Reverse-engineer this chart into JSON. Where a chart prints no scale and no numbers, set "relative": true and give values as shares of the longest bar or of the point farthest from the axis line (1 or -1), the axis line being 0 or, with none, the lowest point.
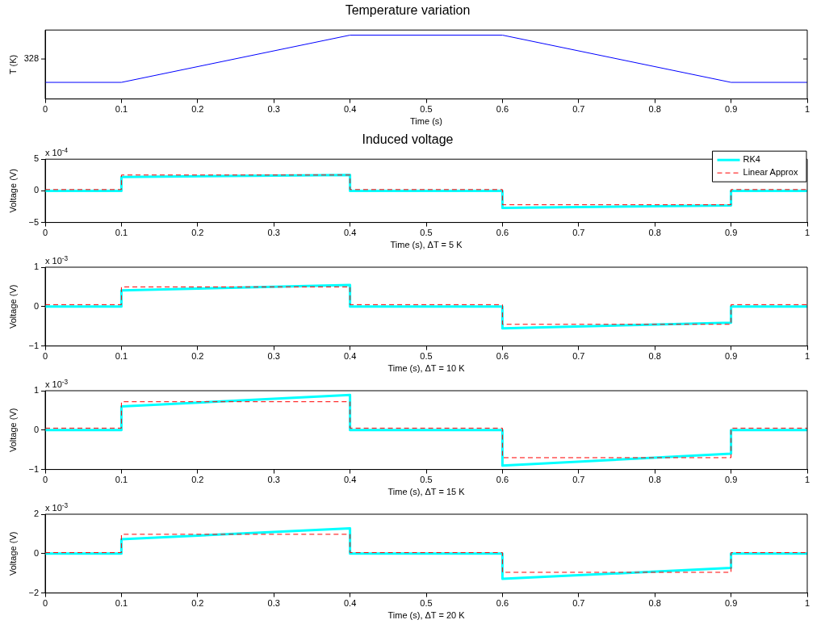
{
  "chart_data": [
    {
      "type": "line",
      "title": "Temperature variation",
      "xlabel": "Time (s)",
      "ylabel": "T (K)",
      "relative": true,
      "annotations": [
        "328"
      ],
      "xlim": [
        0,
        1
      ],
      "xticks": [
        0,
        0.1,
        0.2,
        0.3,
        0.4,
        0.5,
        0.6,
        0.7,
        0.8,
        0.9,
        1
      ],
      "grid": false,
      "legend": false,
      "marker": "none",
      "series": [
        {
          "color": "#0000ff",
          "x": [
            0,
            0.1,
            0.4,
            0.6,
            0.9,
            1
          ],
          "values": [
            0.26,
            0.26,
            1,
            1,
            0.26,
            0.26
          ]
        }
      ]
    },
    {
      "type": "line",
      "title": "Induced voltage",
      "xlabel": "Time (s), ΔT = 5 K",
      "ylabel": "Voltage (V)",
      "annotations": [
        "x 10$^{-4}$"
      ],
      "xlim": [
        0,
        1
      ],
      "xticks": [
        0,
        0.1,
        0.2,
        0.3,
        0.4,
        0.5,
        0.6,
        0.7,
        0.8,
        0.9,
        1
      ],
      "ylim": [
        -5,
        5
      ],
      "yticks": [
        -5,
        0,
        5
      ],
      "grid": false,
      "legend": "top right",
      "marker": "none",
      "series": [
        {
          "name": "RK4",
          "color": "#00ffff",
          "line_style": "solid",
          "x": [
            0,
            0.1,
            0.1,
            0.4,
            0.4,
            0.6,
            0.6,
            0.9,
            0.9,
            1
          ],
          "values": [
            0,
            0,
            2.2,
            2.5,
            0,
            0,
            -2.7,
            -2.3,
            0,
            0
          ]
        },
        {
          "name": "Linear Approx",
          "color": "#ff0000",
          "line_style": "dashed",
          "x": [
            0,
            0.1,
            0.1,
            0.4,
            0.4,
            0.6,
            0.6,
            0.9,
            0.9,
            1
          ],
          "values": [
            0.2,
            0.2,
            2.5,
            2.5,
            0.2,
            0.2,
            -2.2,
            -2.2,
            0.2,
            0.2
          ]
        }
      ]
    },
    {
      "type": "line",
      "xlabel": "Time (s), ΔT = 10 K",
      "ylabel": "Voltage (V)",
      "annotations": [
        "x 10$^{-3}$"
      ],
      "xlim": [
        0,
        1
      ],
      "xticks": [
        0,
        0.1,
        0.2,
        0.3,
        0.4,
        0.5,
        0.6,
        0.7,
        0.8,
        0.9,
        1
      ],
      "ylim": [
        -1,
        1
      ],
      "yticks": [
        -1,
        0,
        1
      ],
      "grid": false,
      "legend": false,
      "marker": "none",
      "series": [
        {
          "color": "#00ffff",
          "line_style": "solid",
          "x": [
            0,
            0.1,
            0.1,
            0.4,
            0.4,
            0.6,
            0.6,
            0.9,
            0.9,
            1
          ],
          "values": [
            0,
            0,
            0.41,
            0.55,
            0,
            0,
            -0.55,
            -0.41,
            0,
            0
          ]
        },
        {
          "color": "#ff0000",
          "line_style": "dashed",
          "x": [
            0,
            0.1,
            0.1,
            0.4,
            0.4,
            0.6,
            0.6,
            0.9,
            0.9,
            1
          ],
          "values": [
            0.05,
            0.05,
            0.5,
            0.5,
            0.05,
            0.05,
            -0.45,
            -0.45,
            0.05,
            0.05
          ]
        }
      ]
    },
    {
      "type": "line",
      "xlabel": "Time (s), ΔT = 15 K",
      "ylabel": "Voltage (V)",
      "annotations": [
        "x 10$^{-3}$"
      ],
      "xlim": [
        0,
        1
      ],
      "xticks": [
        0,
        0.1,
        0.2,
        0.3,
        0.4,
        0.5,
        0.6,
        0.7,
        0.8,
        0.9,
        1
      ],
      "ylim": [
        -1,
        1
      ],
      "yticks": [
        -1,
        0,
        1
      ],
      "grid": false,
      "legend": false,
      "marker": "none",
      "series": [
        {
          "color": "#00ffff",
          "line_style": "solid",
          "x": [
            0,
            0.1,
            0.1,
            0.4,
            0.4,
            0.6,
            0.6,
            0.9,
            0.9,
            1
          ],
          "values": [
            0,
            0,
            0.6,
            0.89,
            0,
            0,
            -0.9,
            -0.6,
            0,
            0
          ]
        },
        {
          "color": "#ff0000",
          "line_style": "dashed",
          "x": [
            0,
            0.1,
            0.1,
            0.4,
            0.4,
            0.6,
            0.6,
            0.9,
            0.9,
            1
          ],
          "values": [
            0.05,
            0.05,
            0.72,
            0.72,
            0.05,
            0.05,
            -0.7,
            -0.7,
            0.05,
            0.05
          ]
        }
      ]
    },
    {
      "type": "line",
      "xlabel": "Time (s), ΔT = 20 K",
      "ylabel": "Voltage (V)",
      "annotations": [
        "x 10$^{-3}$"
      ],
      "xlim": [
        0,
        1
      ],
      "xticks": [
        0,
        0.1,
        0.2,
        0.3,
        0.4,
        0.5,
        0.6,
        0.7,
        0.8,
        0.9,
        1
      ],
      "ylim": [
        -2,
        2
      ],
      "yticks": [
        -2,
        0,
        2
      ],
      "grid": false,
      "legend": false,
      "marker": "none",
      "series": [
        {
          "color": "#00ffff",
          "line_style": "solid",
          "x": [
            0,
            0.1,
            0.1,
            0.4,
            0.4,
            0.6,
            0.6,
            0.9,
            0.9,
            1
          ],
          "values": [
            0,
            0,
            0.73,
            1.28,
            0,
            0,
            -1.28,
            -0.73,
            0,
            0
          ]
        },
        {
          "color": "#ff0000",
          "line_style": "dashed",
          "x": [
            0,
            0.1,
            0.1,
            0.4,
            0.4,
            0.6,
            0.6,
            0.9,
            0.9,
            1
          ],
          "values": [
            0.05,
            0.05,
            0.98,
            0.98,
            0.05,
            0.05,
            -0.95,
            -0.95,
            0.05,
            0.05
          ]
        }
      ]
    }
  ]
}
